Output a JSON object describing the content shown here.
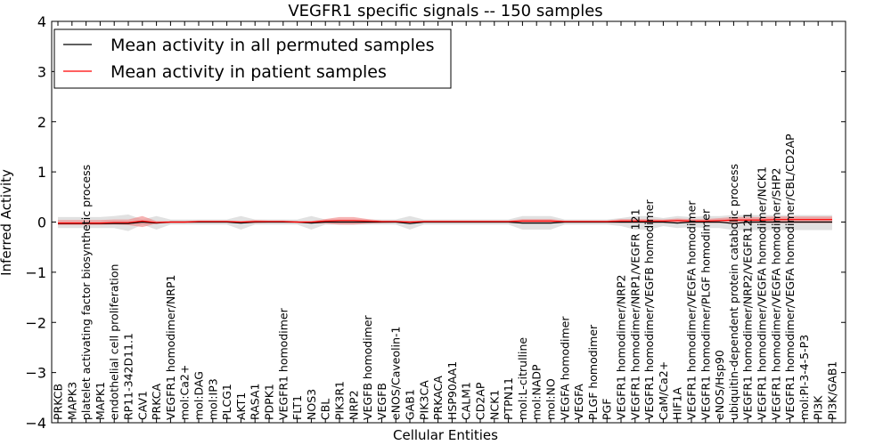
{
  "chart_data": {
    "type": "line",
    "title": "VEGFR1 specific signals -- 150 samples",
    "xlabel": "Cellular Entities",
    "ylabel": "Inferred Activity",
    "ylim": [
      -4,
      4
    ],
    "yticks": [
      -4,
      -3,
      -2,
      -1,
      0,
      1,
      2,
      3,
      4
    ],
    "ytick_labels": [
      "−4",
      "−3",
      "−2",
      "−1",
      "0",
      "1",
      "2",
      "3",
      "4"
    ],
    "legend_position": "top-left",
    "categories": [
      "PRKCB",
      "MAPK3",
      "platelet activating factor biosynthetic process",
      "MAPK1",
      "endothelial cell proliferation",
      "RP11-342D11.1",
      "CAV1",
      "PRKCA",
      "VEGFR1 homodimer/NRP1",
      "mol:Ca2+",
      "mol:DAG",
      "mol:IP3",
      "PLCG1",
      "AKT1",
      "RASA1",
      "PDPK1",
      "VEGFR1 homodimer",
      "FLT1",
      "NOS3",
      "CBL",
      "PIK3R1",
      "NRP2",
      "VEGFB homodimer",
      "VEGFB",
      "eNOS/Caveolin-1",
      "GAB1",
      "PIK3CA",
      "PRKACA",
      "HSP90AA1",
      "CALM1",
      "CD2AP",
      "NCK1",
      "PTPN11",
      "mol:L-citrulline",
      "mol:NADP",
      "mol:NO",
      "VEGFA homodimer",
      "VEGFA",
      "PLGF homodimer",
      "PGF",
      "VEGFR1 homodimer/NRP2",
      "VEGFR1 homodimer/NRP1/VEGFR 121",
      "VEGFR1 homodimer/VEGFB homodimer",
      "CaM/Ca2+",
      "HIF1A",
      "VEGFR1 homodimer/VEGFA homodimer",
      "VEGFR1 homodimer/PLGF homodimer",
      "eNOS/Hsp90",
      "ubiquitin-dependent protein catabolic process",
      "VEGFR1 homodimer/NRP2/VEGFR121",
      "VEGFR1 homodimer/VEGFA homodimer/NCK1",
      "VEGFR1 homodimer/VEGFA homodimer/SHP2",
      "VEGFR1 homodimer/VEGFA homodimer/CBL/CD2AP",
      "mol:PI-3-4-5-P3",
      "PI3K",
      "PI3K/GAB1"
    ],
    "series": [
      {
        "name": "Mean activity in all permuted samples",
        "color": "#000000",
        "values": [
          -0.03,
          -0.03,
          -0.03,
          -0.03,
          -0.03,
          -0.03,
          0.0,
          -0.02,
          0.0,
          0.0,
          0.0,
          0.0,
          0.0,
          -0.02,
          0.0,
          0.0,
          0.0,
          0.0,
          -0.02,
          0.0,
          0.0,
          0.0,
          0.0,
          0.0,
          0.0,
          -0.03,
          0.0,
          0.0,
          0.0,
          0.0,
          0.0,
          0.0,
          0.0,
          -0.02,
          -0.02,
          -0.02,
          0.0,
          0.0,
          0.0,
          0.0,
          0.0,
          0.0,
          0.0,
          0.0,
          -0.02,
          0.0,
          0.0,
          0.0,
          -0.03,
          0.0,
          0.0,
          0.0,
          0.0,
          0.0,
          0.0,
          0.0
        ],
        "band_lower": [
          -0.12,
          -0.12,
          -0.12,
          -0.12,
          -0.12,
          -0.18,
          -0.05,
          -0.15,
          -0.05,
          -0.05,
          -0.05,
          -0.05,
          -0.05,
          -0.15,
          -0.05,
          -0.05,
          -0.05,
          -0.05,
          -0.15,
          -0.05,
          -0.05,
          -0.05,
          -0.05,
          -0.05,
          -0.05,
          -0.15,
          -0.05,
          -0.05,
          -0.05,
          -0.05,
          -0.05,
          -0.05,
          -0.05,
          -0.15,
          -0.15,
          -0.15,
          -0.05,
          -0.05,
          -0.05,
          -0.05,
          -0.08,
          -0.15,
          -0.15,
          -0.08,
          -0.12,
          -0.1,
          -0.12,
          -0.12,
          -0.16,
          -0.16,
          -0.16,
          -0.16,
          -0.16,
          -0.16,
          -0.16,
          -0.16
        ],
        "band_upper": [
          0.1,
          0.1,
          0.1,
          0.1,
          0.12,
          0.15,
          0.05,
          0.12,
          0.05,
          0.05,
          0.05,
          0.05,
          0.05,
          0.12,
          0.05,
          0.05,
          0.05,
          0.05,
          0.12,
          0.05,
          0.05,
          0.05,
          0.05,
          0.05,
          0.05,
          0.12,
          0.05,
          0.05,
          0.05,
          0.05,
          0.05,
          0.05,
          0.05,
          0.12,
          0.12,
          0.12,
          0.05,
          0.05,
          0.05,
          0.05,
          0.08,
          0.12,
          0.12,
          0.08,
          0.12,
          0.1,
          0.12,
          0.12,
          0.14,
          0.14,
          0.14,
          0.14,
          0.14,
          0.14,
          0.14,
          0.14
        ]
      },
      {
        "name": "Mean activity in patient samples",
        "color": "#ff0000",
        "values": [
          -0.02,
          -0.02,
          -0.02,
          -0.02,
          -0.01,
          -0.01,
          0.02,
          -0.01,
          0.0,
          0.0,
          0.01,
          0.01,
          0.01,
          0.0,
          0.01,
          0.01,
          0.01,
          0.0,
          0.0,
          0.02,
          0.03,
          0.03,
          0.02,
          0.01,
          0.01,
          0.0,
          0.01,
          0.01,
          0.01,
          0.01,
          0.01,
          0.01,
          0.01,
          0.02,
          0.02,
          0.02,
          0.01,
          0.01,
          0.01,
          0.01,
          0.02,
          0.02,
          0.02,
          0.02,
          0.03,
          0.02,
          0.02,
          0.03,
          0.04,
          0.04,
          0.04,
          0.05,
          0.05,
          0.05,
          0.05,
          0.05
        ],
        "band_lower": [
          -0.06,
          -0.06,
          -0.06,
          -0.06,
          -0.05,
          -0.06,
          -0.1,
          -0.03,
          -0.02,
          -0.02,
          -0.01,
          -0.01,
          -0.01,
          -0.02,
          -0.02,
          -0.01,
          -0.01,
          -0.02,
          -0.02,
          -0.03,
          -0.05,
          -0.05,
          -0.03,
          -0.02,
          -0.01,
          -0.02,
          -0.01,
          -0.01,
          -0.01,
          -0.01,
          -0.01,
          -0.01,
          -0.01,
          -0.02,
          -0.02,
          -0.02,
          -0.01,
          -0.01,
          -0.01,
          -0.01,
          -0.02,
          -0.02,
          -0.02,
          -0.02,
          -0.02,
          -0.02,
          -0.02,
          -0.02,
          -0.02,
          -0.02,
          -0.02,
          -0.02,
          -0.02,
          -0.02,
          -0.02,
          -0.02
        ],
        "band_upper": [
          0.04,
          0.04,
          0.04,
          0.04,
          0.05,
          0.05,
          0.12,
          0.02,
          0.02,
          0.02,
          0.03,
          0.03,
          0.03,
          0.02,
          0.04,
          0.03,
          0.03,
          0.02,
          0.02,
          0.06,
          0.1,
          0.1,
          0.06,
          0.03,
          0.03,
          0.02,
          0.03,
          0.03,
          0.03,
          0.03,
          0.03,
          0.03,
          0.03,
          0.06,
          0.06,
          0.06,
          0.03,
          0.03,
          0.03,
          0.03,
          0.06,
          0.06,
          0.06,
          0.05,
          0.07,
          0.06,
          0.06,
          0.08,
          0.1,
          0.1,
          0.1,
          0.11,
          0.11,
          0.11,
          0.11,
          0.11
        ]
      }
    ]
  }
}
